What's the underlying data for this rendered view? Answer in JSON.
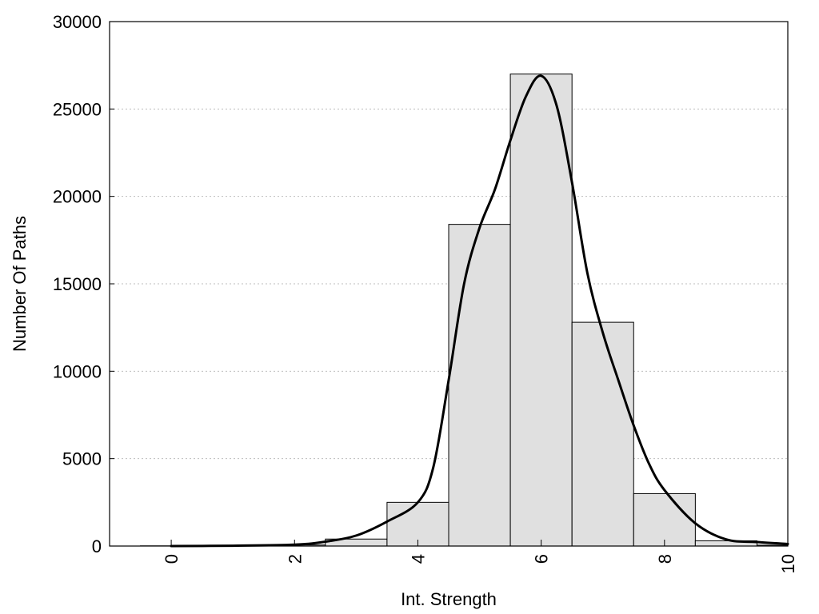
{
  "chart_data": {
    "type": "bar",
    "title": "",
    "xlabel": "Int. Strength",
    "ylabel": "Number Of Paths",
    "xlim": [
      -1,
      10
    ],
    "ylim": [
      0,
      30000
    ],
    "x_ticks": [
      0,
      2,
      4,
      6,
      8,
      10
    ],
    "y_ticks": [
      0,
      5000,
      10000,
      15000,
      20000,
      25000,
      30000
    ],
    "grid": "horizontal dotted",
    "bars": {
      "x": [
        0,
        1,
        2,
        3,
        4,
        5,
        6,
        7,
        8,
        9,
        10
      ],
      "values": [
        10,
        15,
        60,
        400,
        2500,
        18400,
        27000,
        12800,
        3000,
        300,
        50
      ],
      "fill": "#e0e0e0",
      "stroke": "#000000"
    },
    "curve": {
      "x": [
        0,
        1,
        2,
        2.5,
        3,
        3.5,
        4,
        4.25,
        4.5,
        4.75,
        5,
        5.25,
        5.5,
        5.75,
        6,
        6.25,
        6.5,
        6.75,
        7,
        7.25,
        7.5,
        7.75,
        8,
        8.5,
        9,
        9.5,
        10
      ],
      "y": [
        0,
        20,
        80,
        250,
        600,
        1400,
        2500,
        4500,
        9500,
        15000,
        18200,
        20400,
        23200,
        25700,
        26900,
        25200,
        20800,
        15600,
        12200,
        9500,
        6900,
        4700,
        3200,
        1300,
        380,
        230,
        120
      ],
      "color": "#000000"
    }
  }
}
